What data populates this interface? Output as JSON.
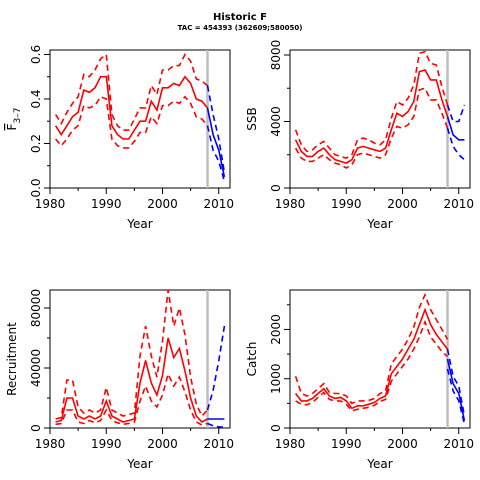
{
  "title": "Historic F",
  "subtitle": "TAC = 454393 (362609;580050)",
  "chart_data": [
    {
      "type": "line",
      "xlabel": "Year",
      "ylabel": "F",
      "ylabel_subscript": "3–7",
      "xlim": [
        1980,
        2012
      ],
      "ylim": [
        0,
        0.62
      ],
      "x_ticks": [
        1980,
        1990,
        2000,
        2010
      ],
      "y_ticks": [
        "0.0",
        "0.2",
        "0.4",
        "0.6"
      ],
      "y_tick_values": [
        0,
        0.2,
        0.4,
        0.6
      ],
      "y_minor": [
        0.1,
        0.3,
        0.5
      ],
      "vline": 2008,
      "colors": {
        "historic": "#ff0000",
        "projection": "#0000ff",
        "vline": "#bebebe"
      },
      "historic": {
        "x": [
          1981,
          1982,
          1983,
          1984,
          1985,
          1986,
          1987,
          1988,
          1989,
          1990,
          1991,
          1992,
          1993,
          1994,
          1995,
          1996,
          1997,
          1998,
          1999,
          2000,
          2001,
          2002,
          2003,
          2004,
          2005,
          2006,
          2007,
          2008
        ],
        "median": [
          0.28,
          0.24,
          0.28,
          0.32,
          0.34,
          0.44,
          0.43,
          0.45,
          0.5,
          0.5,
          0.28,
          0.24,
          0.22,
          0.22,
          0.26,
          0.3,
          0.3,
          0.39,
          0.35,
          0.45,
          0.45,
          0.47,
          0.46,
          0.5,
          0.47,
          0.4,
          0.39,
          0.36
        ],
        "upper": [
          0.33,
          0.29,
          0.34,
          0.38,
          0.41,
          0.51,
          0.5,
          0.53,
          0.58,
          0.6,
          0.33,
          0.28,
          0.26,
          0.26,
          0.31,
          0.36,
          0.36,
          0.46,
          0.42,
          0.53,
          0.53,
          0.55,
          0.55,
          0.6,
          0.57,
          0.49,
          0.48,
          0.46
        ],
        "lower": [
          0.22,
          0.19,
          0.22,
          0.26,
          0.28,
          0.37,
          0.36,
          0.37,
          0.41,
          0.4,
          0.22,
          0.19,
          0.18,
          0.18,
          0.21,
          0.25,
          0.25,
          0.32,
          0.29,
          0.37,
          0.37,
          0.39,
          0.38,
          0.41,
          0.38,
          0.32,
          0.31,
          0.28
        ]
      },
      "projection": {
        "x": [
          2008,
          2009,
          2010,
          2011
        ],
        "median": [
          0.36,
          0.24,
          0.17,
          0.05
        ],
        "upper": [
          0.46,
          0.33,
          0.22,
          0.07
        ],
        "lower": [
          0.28,
          0.17,
          0.12,
          0.03
        ]
      }
    },
    {
      "type": "line",
      "xlabel": "Year",
      "ylabel": "SSB",
      "xlim": [
        1980,
        2012
      ],
      "ylim": [
        0,
        8300
      ],
      "x_ticks": [
        1980,
        1990,
        2000,
        2010
      ],
      "y_ticks": [
        "0",
        "4000",
        "8000"
      ],
      "y_tick_values": [
        0,
        4000,
        8000
      ],
      "y_minor": [
        2000,
        6000
      ],
      "vline": 2008,
      "colors": {
        "historic": "#ff0000",
        "projection": "#0000ff",
        "vline": "#bebebe"
      },
      "historic": {
        "x": [
          1981,
          1982,
          1983,
          1984,
          1985,
          1986,
          1987,
          1988,
          1989,
          1990,
          1991,
          1992,
          1993,
          1994,
          1995,
          1996,
          1997,
          1998,
          1999,
          2000,
          2001,
          2002,
          2003,
          2004,
          2005,
          2006,
          2007,
          2008
        ],
        "median": [
          2900,
          2200,
          1900,
          1900,
          2200,
          2400,
          2000,
          1700,
          1600,
          1500,
          1700,
          2400,
          2500,
          2400,
          2300,
          2200,
          2400,
          3500,
          4500,
          4300,
          4600,
          5200,
          7000,
          7100,
          6500,
          6500,
          5300,
          4300
        ],
        "upper": [
          3500,
          2600,
          2200,
          2300,
          2600,
          2800,
          2400,
          2000,
          1900,
          1800,
          2000,
          2900,
          3000,
          2900,
          2700,
          2600,
          2900,
          4200,
          5200,
          5000,
          5400,
          6200,
          8100,
          8200,
          7500,
          7400,
          6100,
          5000
        ],
        "lower": [
          2400,
          1800,
          1600,
          1600,
          1800,
          2000,
          1700,
          1500,
          1400,
          1200,
          1400,
          2000,
          2100,
          2000,
          1900,
          1800,
          2000,
          3000,
          3700,
          3600,
          3800,
          4300,
          5900,
          6000,
          5300,
          5300,
          4500,
          3600
        ]
      },
      "projection": {
        "x": [
          2008,
          2009,
          2010,
          2011
        ],
        "median": [
          4300,
          3200,
          2900,
          2900
        ],
        "upper": [
          5000,
          4000,
          4000,
          5000
        ],
        "lower": [
          3600,
          2500,
          2000,
          1700
        ]
      }
    },
    {
      "type": "line",
      "xlabel": "Year",
      "ylabel": "Recruitment",
      "xlim": [
        1980,
        2012
      ],
      "ylim": [
        0,
        92000
      ],
      "x_ticks": [
        1980,
        1990,
        2000,
        2010
      ],
      "y_ticks": [
        "0",
        "40000",
        "80000"
      ],
      "y_tick_values": [
        0,
        40000,
        80000
      ],
      "y_minor": [
        20000,
        60000
      ],
      "vline": 2008,
      "colors": {
        "historic": "#ff0000",
        "projection": "#0000ff",
        "vline": "#bebebe"
      },
      "historic": {
        "x": [
          1981,
          1982,
          1983,
          1984,
          1985,
          1986,
          1987,
          1988,
          1989,
          1990,
          1991,
          1992,
          1993,
          1994,
          1995,
          1996,
          1997,
          1998,
          1999,
          2000,
          2001,
          2002,
          2003,
          2004,
          2005,
          2006,
          2007,
          2008
        ],
        "median": [
          4000,
          5000,
          20000,
          20000,
          8000,
          6000,
          8000,
          6000,
          8000,
          18000,
          8000,
          6000,
          4000,
          5000,
          6000,
          30000,
          45000,
          30000,
          22000,
          35000,
          60000,
          47000,
          53000,
          38000,
          20000,
          8000,
          4000,
          6000
        ],
        "upper": [
          6000,
          7000,
          32000,
          32000,
          14000,
          10000,
          12000,
          10000,
          12000,
          27000,
          12000,
          10000,
          8000,
          9000,
          10000,
          48000,
          68000,
          48000,
          34000,
          58000,
          92000,
          68000,
          80000,
          62000,
          34000,
          16000,
          8000,
          12000
        ],
        "lower": [
          2500,
          3000,
          12000,
          12000,
          4000,
          3000,
          5000,
          3500,
          5000,
          12000,
          5000,
          3500,
          2500,
          3000,
          4000,
          18000,
          28000,
          18000,
          14000,
          22000,
          36000,
          28000,
          34000,
          24000,
          12000,
          4000,
          2000,
          3000
        ]
      },
      "projection": {
        "x": [
          2008,
          2009,
          2010,
          2011
        ],
        "median": [
          6000,
          6000,
          6000,
          6000
        ],
        "upper": [
          12000,
          25000,
          45000,
          68000
        ],
        "lower": [
          3000,
          1500,
          800,
          500
        ]
      }
    },
    {
      "type": "line",
      "xlabel": "Year",
      "ylabel": "Catch",
      "xlim": [
        1980,
        2012
      ],
      "ylim": [
        0,
        2800
      ],
      "x_ticks": [
        1980,
        1990,
        2000,
        2010
      ],
      "y_ticks": [
        "0",
        "1000",
        "2000"
      ],
      "y_tick_values": [
        0,
        1000,
        2000
      ],
      "y_minor": [
        500,
        1500,
        2500
      ],
      "vline": 2008,
      "colors": {
        "historic": "#ff0000",
        "projection": "#0000ff",
        "vline": "#bebebe"
      },
      "historic": {
        "x": [
          1981,
          1982,
          1983,
          1984,
          1985,
          1986,
          1987,
          1988,
          1989,
          1990,
          1991,
          1992,
          1993,
          1994,
          1995,
          1996,
          1997,
          1998,
          1999,
          2000,
          2001,
          2002,
          2003,
          2004,
          2005,
          2006,
          2007,
          2008
        ],
        "median": [
          700,
          550,
          550,
          600,
          700,
          800,
          650,
          600,
          620,
          550,
          400,
          450,
          450,
          480,
          520,
          600,
          650,
          1100,
          1250,
          1400,
          1600,
          1800,
          2100,
          2400,
          2100,
          1900,
          1750,
          1600
        ],
        "upper": [
          1050,
          700,
          650,
          700,
          800,
          900,
          720,
          700,
          700,
          650,
          500,
          550,
          550,
          560,
          600,
          700,
          750,
          1300,
          1450,
          1600,
          1800,
          2050,
          2450,
          2700,
          2400,
          2200,
          2000,
          1800
        ],
        "lower": [
          550,
          480,
          470,
          520,
          620,
          720,
          580,
          550,
          550,
          480,
          350,
          380,
          400,
          420,
          460,
          540,
          580,
          950,
          1100,
          1250,
          1400,
          1600,
          1850,
          2150,
          1850,
          1700,
          1550,
          1450
        ]
      },
      "projection": {
        "x": [
          2008,
          2009,
          2010,
          2011
        ],
        "median": [
          1400,
          900,
          700,
          150
        ],
        "upper": [
          1600,
          1050,
          850,
          250
        ],
        "lower": [
          1200,
          750,
          550,
          80
        ]
      }
    }
  ]
}
